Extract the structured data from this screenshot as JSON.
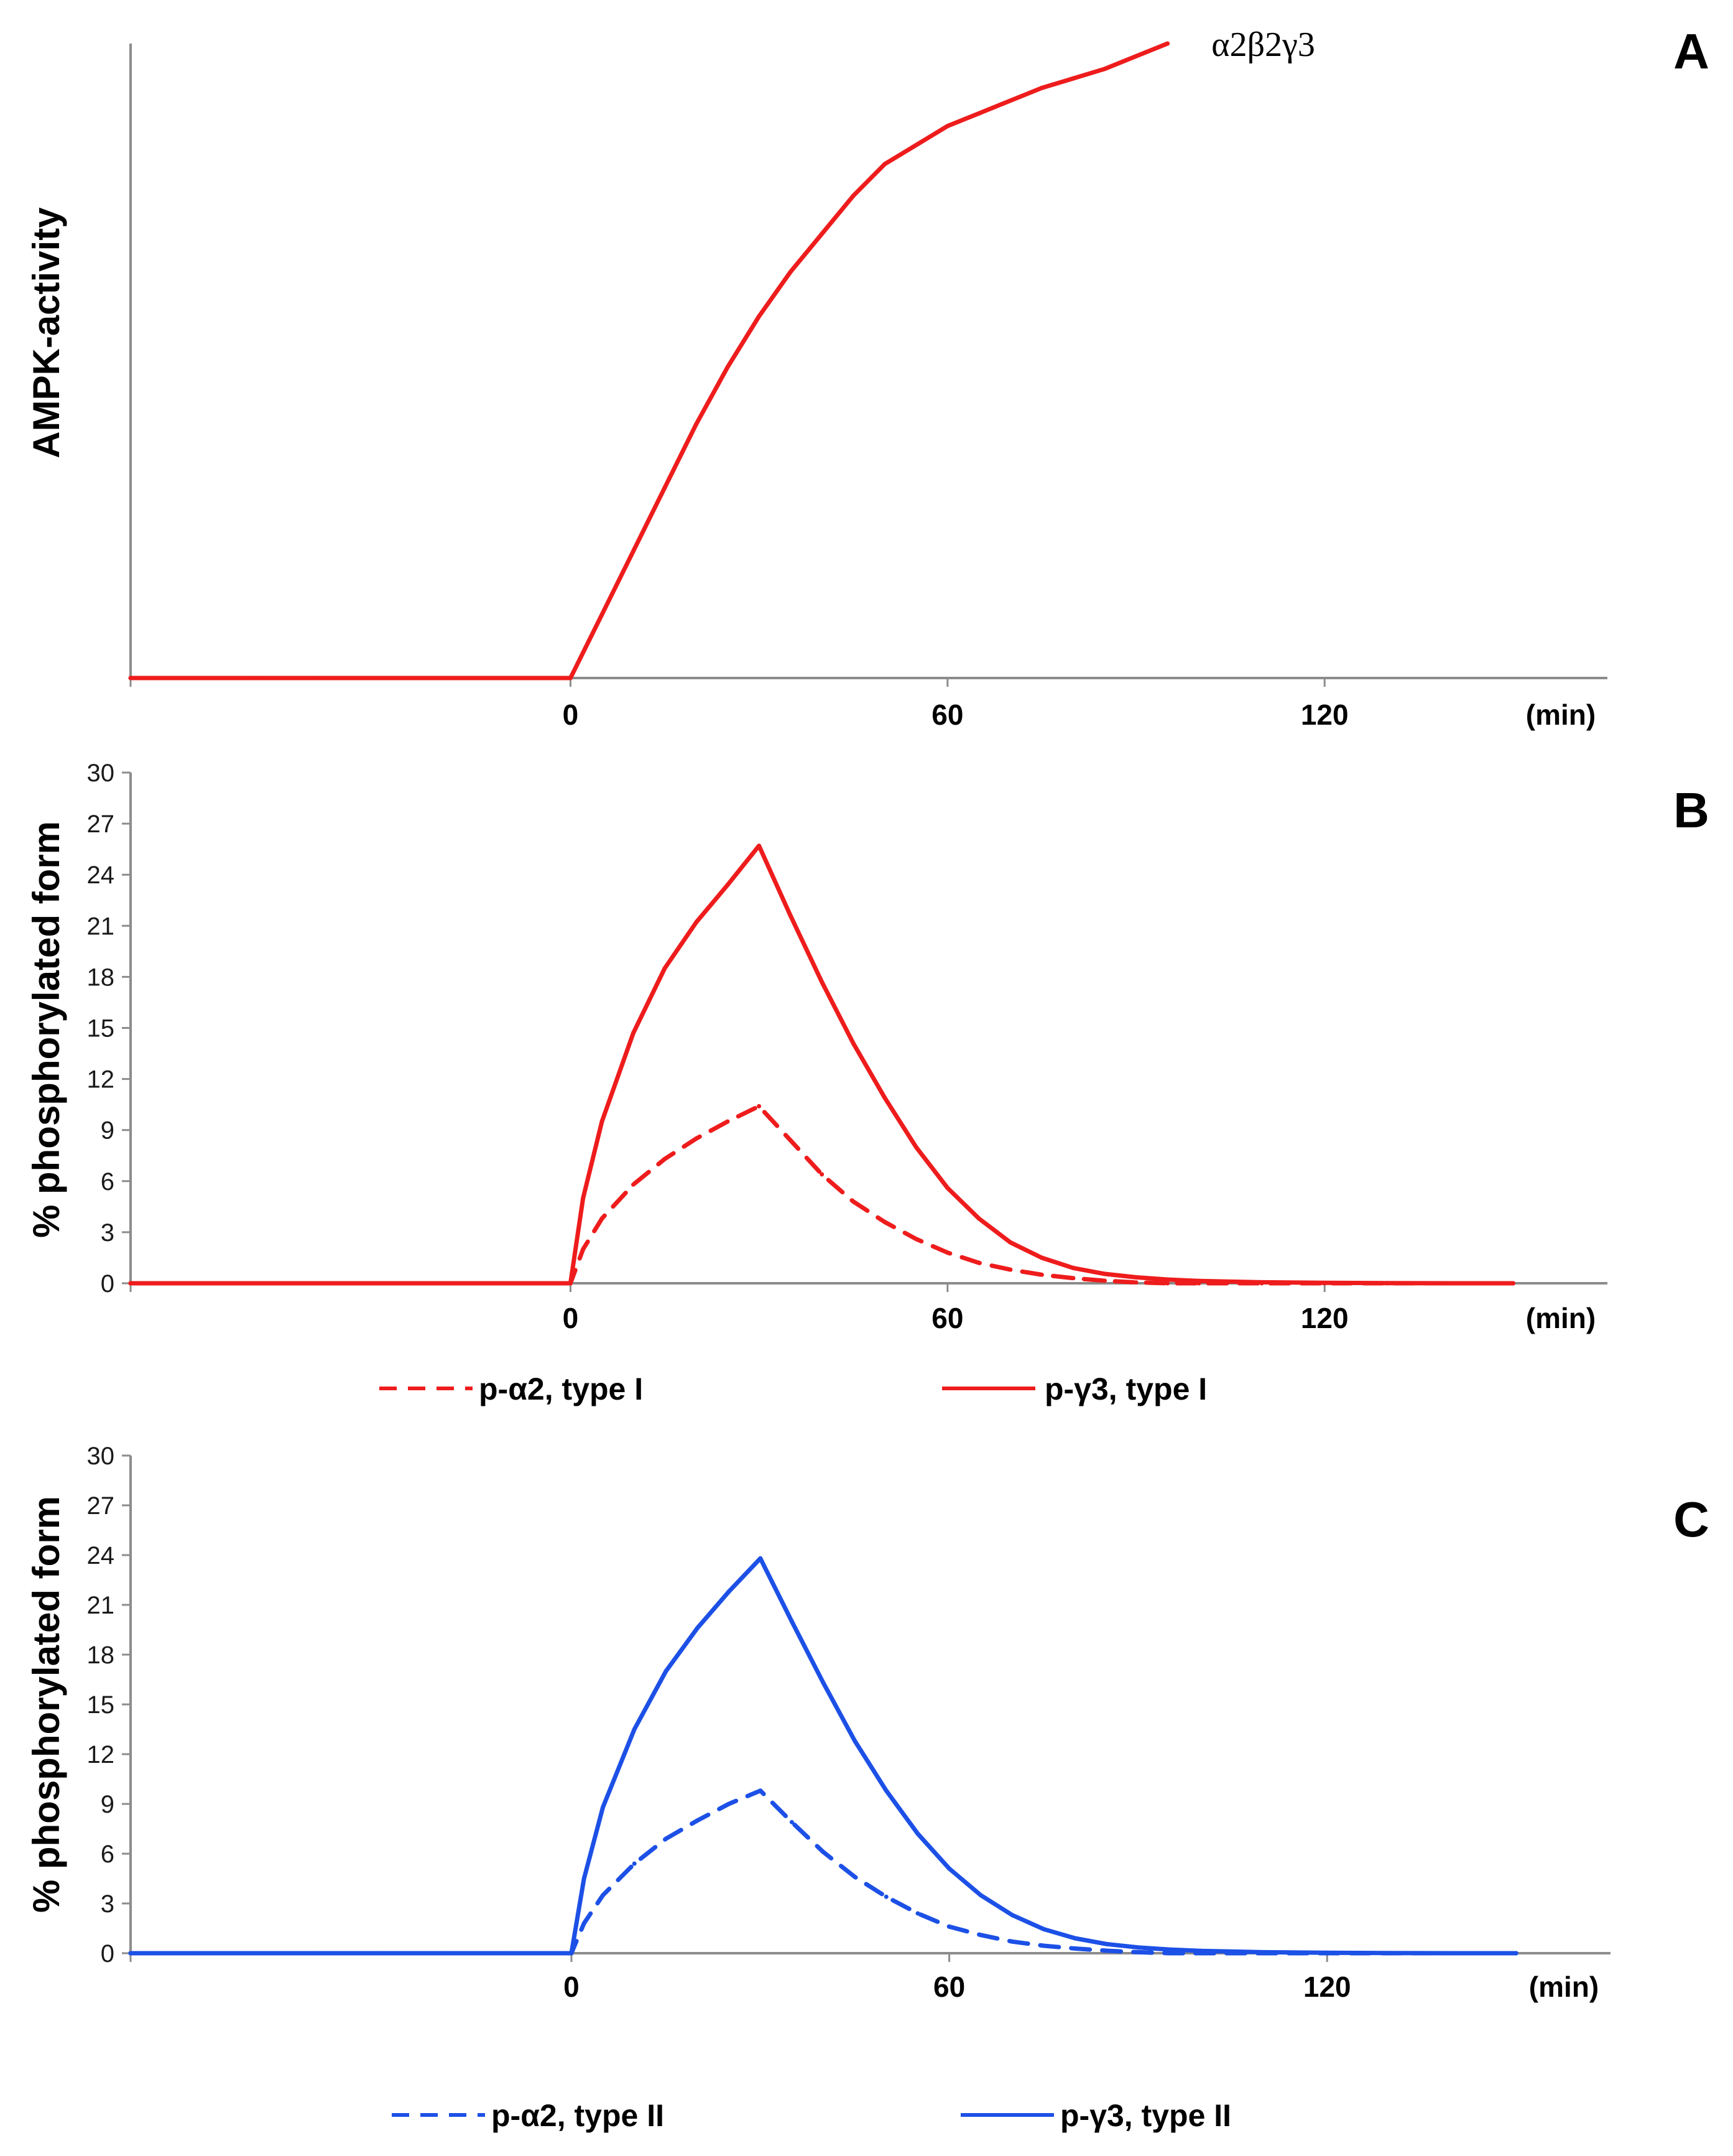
{
  "colors": {
    "red": "#ee1c1c",
    "blue": "#1c50e6",
    "axis": "#8c8c8c"
  },
  "chart_data": [
    {
      "panel": "A",
      "type": "line",
      "title": "",
      "xlabel": "",
      "ylabel": "AMPK-activity",
      "x_unit_label": "(min)",
      "xlim": [
        -70,
        165
      ],
      "ylim": [
        0,
        100
      ],
      "xticks": [
        0,
        60,
        120
      ],
      "grid": false,
      "annotations": [
        {
          "text": "α2β2γ3",
          "x": 102,
          "y": 100
        }
      ],
      "series": [
        {
          "color": "red",
          "style": "solid",
          "x": [
            -70,
            -60,
            -50,
            -40,
            -30,
            -20,
            -10,
            0,
            5,
            10,
            15,
            20,
            25,
            30,
            35,
            40,
            45,
            50,
            55,
            60,
            65,
            70,
            75,
            80,
            85,
            90,
            95
          ],
          "y": [
            0,
            0,
            0,
            0,
            0,
            0,
            0,
            0,
            10,
            20,
            30,
            40,
            49,
            57,
            64,
            70,
            76,
            81,
            84,
            87,
            89,
            91,
            93,
            94.5,
            96,
            98,
            100
          ]
        }
      ]
    },
    {
      "panel": "B",
      "type": "line",
      "title": "",
      "xlabel": "",
      "ylabel": "% phosphorylated form",
      "x_unit_label": "(min)",
      "xlim": [
        -70,
        165
      ],
      "ylim": [
        0,
        30
      ],
      "yticks": [
        0,
        3,
        6,
        9,
        12,
        15,
        18,
        21,
        24,
        27,
        30
      ],
      "xticks": [
        0,
        60,
        120
      ],
      "grid": false,
      "legend": "bottom",
      "series": [
        {
          "name": "p-α2, type I",
          "color": "red",
          "style": "dashed",
          "x": [
            -70,
            -60,
            -50,
            -40,
            -30,
            -20,
            -10,
            0,
            2,
            5,
            10,
            15,
            20,
            25,
            30,
            35,
            40,
            45,
            50,
            55,
            60,
            65,
            70,
            75,
            80,
            85,
            90,
            95,
            100,
            110,
            120,
            130,
            140,
            150
          ],
          "y": [
            0,
            0,
            0,
            0,
            0,
            0,
            0,
            0,
            2,
            3.8,
            5.8,
            7.3,
            8.5,
            9.5,
            10.4,
            8.4,
            6.4,
            4.8,
            3.6,
            2.6,
            1.8,
            1.2,
            0.8,
            0.5,
            0.3,
            0.15,
            0.05,
            0,
            0,
            0,
            0,
            0,
            0,
            0
          ]
        },
        {
          "name": "p-γ3, type I",
          "color": "red",
          "style": "solid",
          "x": [
            -70,
            -60,
            -50,
            -40,
            -30,
            -20,
            -10,
            0,
            2,
            5,
            10,
            15,
            20,
            25,
            30,
            35,
            40,
            45,
            50,
            55,
            60,
            65,
            70,
            75,
            80,
            85,
            90,
            95,
            100,
            110,
            120,
            130,
            140,
            150
          ],
          "y": [
            0,
            0,
            0,
            0,
            0,
            0,
            0,
            0,
            5,
            9.5,
            14.7,
            18.5,
            21.2,
            23.4,
            25.7,
            21.6,
            17.7,
            14.1,
            10.9,
            8.0,
            5.6,
            3.8,
            2.4,
            1.5,
            0.9,
            0.55,
            0.35,
            0.22,
            0.14,
            0.06,
            0.03,
            0.01,
            0,
            0
          ]
        }
      ]
    },
    {
      "panel": "C",
      "type": "line",
      "title": "",
      "xlabel": "",
      "ylabel": "% phosphorylated form",
      "x_unit_label": "(min)",
      "xlim": [
        -70,
        165
      ],
      "ylim": [
        0,
        30
      ],
      "yticks": [
        0,
        3,
        6,
        9,
        12,
        15,
        18,
        21,
        24,
        27,
        30
      ],
      "xticks": [
        0,
        60,
        120
      ],
      "grid": false,
      "legend": "bottom",
      "series": [
        {
          "name": "p-α2, type II",
          "color": "blue",
          "style": "dashed",
          "x": [
            -70,
            -60,
            -50,
            -40,
            -30,
            -20,
            -10,
            0,
            2,
            5,
            10,
            15,
            20,
            25,
            30,
            35,
            40,
            45,
            50,
            55,
            60,
            65,
            70,
            75,
            80,
            85,
            90,
            95,
            100,
            110,
            120,
            130,
            140,
            150
          ],
          "y": [
            0,
            0,
            0,
            0,
            0,
            0,
            0,
            0,
            1.8,
            3.5,
            5.4,
            6.9,
            8.0,
            9.0,
            9.8,
            7.9,
            6.1,
            4.6,
            3.4,
            2.4,
            1.6,
            1.1,
            0.7,
            0.45,
            0.28,
            0.15,
            0.06,
            0,
            0,
            0,
            0,
            0,
            0,
            0
          ]
        },
        {
          "name": "p-γ3, type II",
          "color": "blue",
          "style": "solid",
          "x": [
            -70,
            -60,
            -50,
            -40,
            -30,
            -20,
            -10,
            0,
            2,
            5,
            10,
            15,
            20,
            25,
            30,
            35,
            40,
            45,
            50,
            55,
            60,
            65,
            70,
            75,
            80,
            85,
            90,
            95,
            100,
            110,
            120,
            130,
            140,
            150
          ],
          "y": [
            0,
            0,
            0,
            0,
            0,
            0,
            0,
            0,
            4.5,
            8.8,
            13.5,
            17.0,
            19.6,
            21.8,
            23.8,
            20.0,
            16.3,
            12.8,
            9.8,
            7.2,
            5.1,
            3.5,
            2.3,
            1.45,
            0.9,
            0.55,
            0.35,
            0.22,
            0.14,
            0.06,
            0.03,
            0.01,
            0,
            0
          ]
        }
      ]
    }
  ]
}
